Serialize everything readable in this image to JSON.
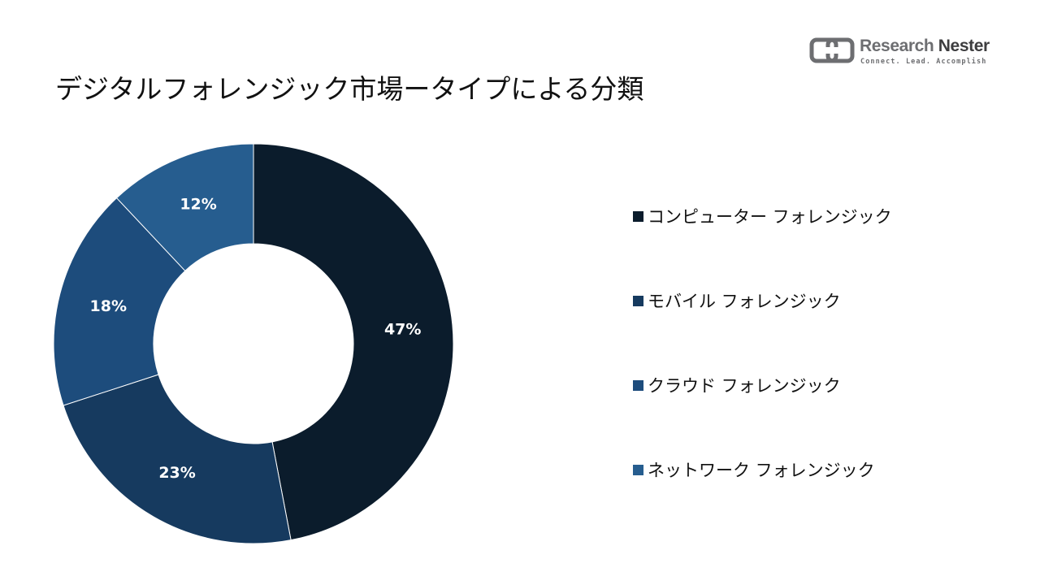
{
  "title": "デジタルフォレンジック市場ータイプによる分類",
  "logo": {
    "name_part1": "Research ",
    "name_part2": "Nester",
    "tagline": "Connect. Lead. Accomplish"
  },
  "chart_data": {
    "type": "pie",
    "style": "donut",
    "categories": [
      "コンピューター フォレンジック",
      "モバイル フォレンジック",
      "クラウド フォレンジック",
      "ネットワーク フォレンジック"
    ],
    "values": [
      47,
      23,
      18,
      12
    ],
    "value_labels": [
      "47%",
      "23%",
      "18%",
      "12%"
    ],
    "colors": [
      "#0b1c2c",
      "#163a5f",
      "#1d4c7c",
      "#265d8f"
    ],
    "legend_position": "right"
  }
}
